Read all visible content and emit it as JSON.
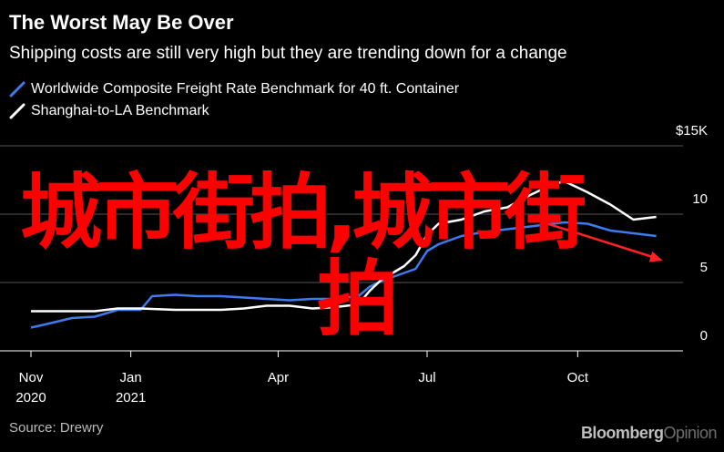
{
  "header": {
    "title": "The Worst May Be Over",
    "subtitle": "Shipping costs are still very high but they are trending down for a change"
  },
  "legend": [
    {
      "label": "Worldwide Composite Freight Rate Benchmark for 40 ft. Container",
      "color": "#3d7cf0"
    },
    {
      "label": "Shanghai-to-LA Benchmark",
      "color": "#ffffff"
    }
  ],
  "source": "Source: Drewry",
  "brand": {
    "main": "Bloomberg",
    "accent": "Opinion"
  },
  "watermark": {
    "line1": "城市街拍,城市街",
    "line2": "拍"
  },
  "chart_data": {
    "type": "line",
    "y_unit_label": "$15K",
    "ylim": [
      0,
      15
    ],
    "y_ticks": [
      {
        "value": 15,
        "label": "$15K"
      },
      {
        "value": 10,
        "label": "10"
      },
      {
        "value": 5,
        "label": "5"
      },
      {
        "value": 0,
        "label": "0"
      }
    ],
    "xlim": [
      "2020-11-01",
      "2021-12-01"
    ],
    "x_ticks": [
      {
        "date": "2020-11-01",
        "label": "Nov",
        "label2": "2020"
      },
      {
        "date": "2021-01-01",
        "label": "Jan",
        "label2": "2021"
      },
      {
        "date": "2021-04-01",
        "label": "Apr",
        "label2": ""
      },
      {
        "date": "2021-07-01",
        "label": "Jul",
        "label2": ""
      },
      {
        "date": "2021-10-01",
        "label": "Oct",
        "label2": ""
      }
    ],
    "grid": true,
    "series": [
      {
        "name": "Worldwide Composite Freight Rate Benchmark for 40 ft. Container",
        "color": "#3d7cf0",
        "points": [
          [
            "2020-11-01",
            1.7
          ],
          [
            "2020-11-12",
            2.0
          ],
          [
            "2020-11-26",
            2.4
          ],
          [
            "2020-12-10",
            2.5
          ],
          [
            "2020-12-24",
            3.0
          ],
          [
            "2021-01-07",
            3.0
          ],
          [
            "2021-01-14",
            4.0
          ],
          [
            "2021-01-28",
            4.1
          ],
          [
            "2021-02-11",
            4.0
          ],
          [
            "2021-02-25",
            4.0
          ],
          [
            "2021-03-11",
            3.9
          ],
          [
            "2021-03-25",
            3.8
          ],
          [
            "2021-04-08",
            3.7
          ],
          [
            "2021-04-22",
            3.8
          ],
          [
            "2021-05-06",
            3.8
          ],
          [
            "2021-05-20",
            4.0
          ],
          [
            "2021-05-27",
            4.7
          ],
          [
            "2021-06-03",
            5.1
          ],
          [
            "2021-06-17",
            5.7
          ],
          [
            "2021-06-24",
            6.0
          ],
          [
            "2021-07-01",
            7.3
          ],
          [
            "2021-07-08",
            7.8
          ],
          [
            "2021-07-22",
            8.4
          ],
          [
            "2021-08-05",
            8.7
          ],
          [
            "2021-08-19",
            8.9
          ],
          [
            "2021-09-02",
            9.1
          ],
          [
            "2021-09-16",
            9.3
          ],
          [
            "2021-09-23",
            9.4
          ],
          [
            "2021-10-07",
            9.3
          ],
          [
            "2021-10-21",
            8.8
          ],
          [
            "2021-11-04",
            8.6
          ],
          [
            "2021-11-18",
            8.4
          ]
        ]
      },
      {
        "name": "Shanghai-to-LA Benchmark",
        "color": "#ffffff",
        "points": [
          [
            "2020-11-01",
            2.9
          ],
          [
            "2020-11-26",
            2.9
          ],
          [
            "2020-12-10",
            2.9
          ],
          [
            "2020-12-24",
            3.1
          ],
          [
            "2021-01-07",
            3.1
          ],
          [
            "2021-01-28",
            3.0
          ],
          [
            "2021-02-11",
            3.0
          ],
          [
            "2021-02-25",
            3.0
          ],
          [
            "2021-03-11",
            3.1
          ],
          [
            "2021-03-25",
            3.3
          ],
          [
            "2021-04-08",
            3.3
          ],
          [
            "2021-04-22",
            3.1
          ],
          [
            "2021-05-06",
            3.2
          ],
          [
            "2021-05-20",
            3.4
          ],
          [
            "2021-05-27",
            4.4
          ],
          [
            "2021-06-03",
            5.2
          ],
          [
            "2021-06-17",
            6.2
          ],
          [
            "2021-06-24",
            7.0
          ],
          [
            "2021-07-01",
            8.5
          ],
          [
            "2021-07-08",
            9.3
          ],
          [
            "2021-07-22",
            9.6
          ],
          [
            "2021-08-05",
            10.2
          ],
          [
            "2021-08-19",
            10.5
          ],
          [
            "2021-09-02",
            11.4
          ],
          [
            "2021-09-16",
            12.2
          ],
          [
            "2021-09-23",
            12.4
          ],
          [
            "2021-10-07",
            11.6
          ],
          [
            "2021-10-21",
            10.7
          ],
          [
            "2021-11-04",
            9.6
          ],
          [
            "2021-11-18",
            9.8
          ]
        ]
      }
    ],
    "annotation": {
      "type": "arrow",
      "color": "#ff2222",
      "from": [
        "2021-09-02",
        9.7
      ],
      "to": [
        "2021-11-22",
        6.6
      ]
    }
  }
}
